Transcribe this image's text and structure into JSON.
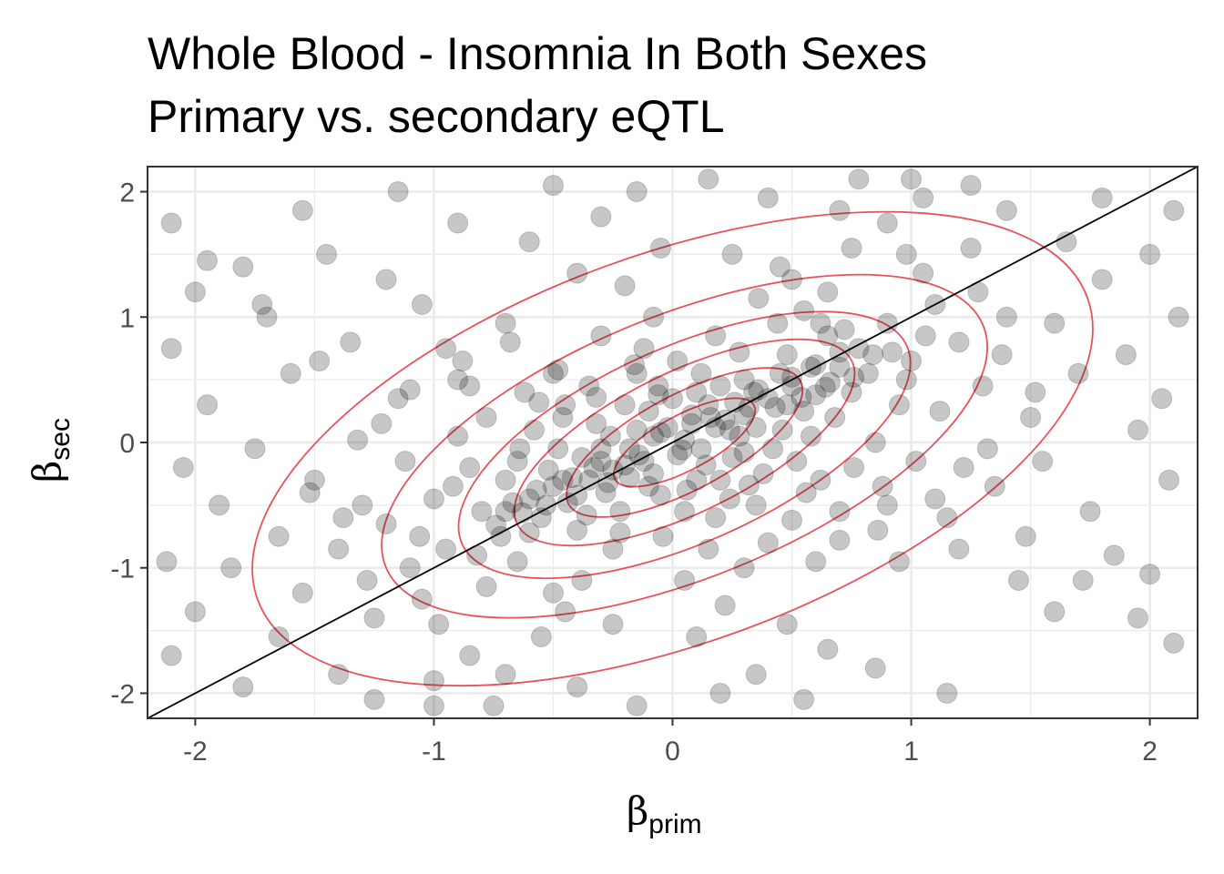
{
  "chart_data": {
    "type": "scatter",
    "title": "Whole Blood - Insomnia In Both Sexes",
    "subtitle": "Primary vs. secondary eQTL",
    "xlabel": {
      "symbol": "β",
      "subscript": "prim"
    },
    "ylabel": {
      "symbol": "β",
      "subscript": "sec"
    },
    "xlim": [
      -2.2,
      2.2
    ],
    "ylim": [
      -2.2,
      2.2
    ],
    "x_ticks": [
      -2,
      -1,
      0,
      1,
      2
    ],
    "y_ticks": [
      -2,
      -1,
      0,
      1,
      2
    ],
    "x_tick_labels": [
      "-2",
      "-1",
      "0",
      "1",
      "2"
    ],
    "y_tick_labels": [
      "-2",
      "-1",
      "0",
      "1",
      "2"
    ],
    "grid": true,
    "reference_line": {
      "slope": 1,
      "intercept": 0,
      "color": "#000000"
    },
    "point_color": "#000000",
    "point_opacity": 0.22,
    "contour_color": "#e8333d",
    "contour_levels": [
      {
        "cx": 0.05,
        "cy": 0.0,
        "rx": 0.33,
        "ry": 0.22,
        "angle": 28
      },
      {
        "cx": 0.05,
        "cy": 0.0,
        "rx": 0.55,
        "ry": 0.38,
        "angle": 28
      },
      {
        "cx": 0.05,
        "cy": 0.0,
        "rx": 0.78,
        "ry": 0.56,
        "angle": 26
      },
      {
        "cx": 0.05,
        "cy": -0.02,
        "rx": 1.02,
        "ry": 0.78,
        "angle": 24
      },
      {
        "cx": 0.05,
        "cy": -0.03,
        "rx": 1.35,
        "ry": 1.05,
        "angle": 22
      },
      {
        "cx": 0.0,
        "cy": -0.05,
        "rx": 1.85,
        "ry": 1.55,
        "angle": 20
      }
    ],
    "points": [
      [
        -0.12,
        -0.15
      ],
      [
        0.05,
        0.02
      ],
      [
        0.18,
        0.12
      ],
      [
        -0.25,
        -0.22
      ],
      [
        0.32,
        0.28
      ],
      [
        -0.05,
        0.08
      ],
      [
        0.12,
        -0.05
      ],
      [
        0.22,
        0.18
      ],
      [
        -0.35,
        -0.3
      ],
      [
        0.4,
        0.35
      ],
      [
        -0.18,
        -0.05
      ],
      [
        0.08,
        0.15
      ],
      [
        0.28,
        0.05
      ],
      [
        -0.42,
        -0.28
      ],
      [
        0.5,
        0.45
      ],
      [
        -0.08,
        -0.25
      ],
      [
        0.15,
        0.3
      ],
      [
        0.35,
        0.12
      ],
      [
        -0.28,
        -0.4
      ],
      [
        0.02,
        -0.1
      ],
      [
        0.45,
        0.55
      ],
      [
        -0.5,
        -0.35
      ],
      [
        0.6,
        0.38
      ],
      [
        -0.15,
        0.1
      ],
      [
        0.25,
        -0.12
      ],
      [
        -0.38,
        -0.12
      ],
      [
        0.1,
        0.4
      ],
      [
        0.55,
        0.25
      ],
      [
        -0.6,
        -0.45
      ],
      [
        0.7,
        0.6
      ],
      [
        -0.22,
        -0.55
      ],
      [
        0.3,
        0.5
      ],
      [
        -0.1,
        0.25
      ],
      [
        0.42,
        -0.05
      ],
      [
        -0.48,
        -0.05
      ],
      [
        0.65,
        0.85
      ],
      [
        -0.7,
        -0.3
      ],
      [
        0.2,
        -0.3
      ],
      [
        -0.32,
        0.15
      ],
      [
        0.48,
        0.7
      ],
      [
        -0.55,
        -0.6
      ],
      [
        0.75,
        0.4
      ],
      [
        0.0,
        0.35
      ],
      [
        -0.65,
        -0.15
      ],
      [
        0.38,
        -0.25
      ],
      [
        -0.4,
        -0.7
      ],
      [
        0.58,
        0.05
      ],
      [
        -0.2,
        0.3
      ],
      [
        0.82,
        0.55
      ],
      [
        -0.8,
        -0.55
      ],
      [
        0.12,
        0.55
      ],
      [
        -0.05,
        -0.42
      ],
      [
        0.52,
        -0.15
      ],
      [
        -0.45,
        0.3
      ],
      [
        0.68,
        0.2
      ],
      [
        -0.72,
        -0.75
      ],
      [
        0.28,
        0.72
      ],
      [
        -0.3,
        -0.15
      ],
      [
        0.9,
        0.95
      ],
      [
        -0.85,
        -0.2
      ],
      [
        0.05,
        -0.55
      ],
      [
        0.44,
        0.95
      ],
      [
        -0.58,
        0.1
      ],
      [
        0.62,
        -0.3
      ],
      [
        -0.95,
        -0.85
      ],
      [
        0.95,
        0.3
      ],
      [
        -0.15,
        0.55
      ],
      [
        0.18,
        -0.6
      ],
      [
        -0.65,
        -0.95
      ],
      [
        0.78,
        0.75
      ],
      [
        -0.35,
        0.45
      ],
      [
        0.35,
        -0.5
      ],
      [
        -1.0,
        -0.45
      ],
      [
        1.0,
        0.65
      ],
      [
        -0.25,
        -0.85
      ],
      [
        0.55,
        1.05
      ],
      [
        -0.9,
        0.05
      ],
      [
        0.85,
        0.0
      ],
      [
        -1.1,
        -1.0
      ],
      [
        1.1,
        1.1
      ],
      [
        -0.5,
        0.55
      ],
      [
        0.4,
        -0.8
      ],
      [
        -0.78,
        -1.15
      ],
      [
        0.98,
        0.5
      ],
      [
        -0.12,
        0.75
      ],
      [
        0.15,
        -0.85
      ],
      [
        -1.2,
        -0.65
      ],
      [
        1.2,
        0.8
      ],
      [
        -0.62,
        0.4
      ],
      [
        0.7,
        -0.55
      ],
      [
        -1.05,
        -1.25
      ],
      [
        0.65,
        1.2
      ],
      [
        -0.3,
        0.85
      ],
      [
        0.3,
        -1.0
      ],
      [
        -1.3,
        -0.5
      ],
      [
        1.3,
        0.45
      ],
      [
        -0.85,
        0.45
      ],
      [
        0.88,
        -0.35
      ],
      [
        -1.25,
        -1.4
      ],
      [
        1.05,
        1.35
      ],
      [
        -0.08,
        1.0
      ],
      [
        0.05,
        -1.1
      ],
      [
        -1.4,
        -0.85
      ],
      [
        1.4,
        1.0
      ],
      [
        -0.95,
        0.75
      ],
      [
        1.02,
        -0.15
      ],
      [
        -0.45,
        -1.35
      ],
      [
        0.45,
        1.4
      ],
      [
        -1.5,
        -0.3
      ],
      [
        1.5,
        0.2
      ],
      [
        -0.7,
        0.95
      ],
      [
        0.6,
        -0.95
      ],
      [
        -1.15,
        0.35
      ],
      [
        1.15,
        -0.6
      ],
      [
        -1.55,
        -1.2
      ],
      [
        1.25,
        1.55
      ],
      [
        -0.2,
        1.25
      ],
      [
        0.22,
        -1.3
      ],
      [
        -1.65,
        -0.75
      ],
      [
        1.6,
        0.95
      ],
      [
        -1.05,
        1.1
      ],
      [
        0.95,
        -0.95
      ],
      [
        -0.55,
        -1.55
      ],
      [
        0.75,
        1.55
      ],
      [
        -1.75,
        -0.05
      ],
      [
        1.7,
        0.55
      ],
      [
        -0.4,
        1.35
      ],
      [
        0.48,
        -1.45
      ],
      [
        -1.35,
        0.8
      ],
      [
        1.35,
        -0.35
      ],
      [
        -1.85,
        -1.0
      ],
      [
        1.8,
        1.3
      ],
      [
        -0.05,
        1.55
      ],
      [
        0.1,
        -1.55
      ],
      [
        -1.9,
        -0.5
      ],
      [
        1.9,
        0.7
      ],
      [
        -1.2,
        1.3
      ],
      [
        1.2,
        -0.85
      ],
      [
        -0.85,
        -1.7
      ],
      [
        0.9,
        1.75
      ],
      [
        -1.6,
        0.55
      ],
      [
        1.55,
        -0.15
      ],
      [
        -2.0,
        -1.35
      ],
      [
        2.0,
        1.5
      ],
      [
        -0.6,
        1.6
      ],
      [
        0.65,
        -1.65
      ],
      [
        -1.7,
        1.0
      ],
      [
        1.75,
        -0.55
      ],
      [
        -2.05,
        -0.2
      ],
      [
        2.05,
        0.35
      ],
      [
        -0.3,
        1.8
      ],
      [
        0.35,
        -1.85
      ],
      [
        -1.45,
        1.5
      ],
      [
        1.45,
        -1.1
      ],
      [
        -1.0,
        -1.9
      ],
      [
        1.05,
        1.95
      ],
      [
        -1.95,
        0.3
      ],
      [
        1.95,
        0.1
      ],
      [
        -2.1,
        -1.7
      ],
      [
        2.1,
        1.85
      ],
      [
        -0.9,
        1.75
      ],
      [
        0.85,
        -1.8
      ],
      [
        -1.8,
        1.4
      ],
      [
        1.85,
        -0.9
      ],
      [
        -0.15,
        2.0
      ],
      [
        0.2,
        -2.0
      ],
      [
        -2.1,
        0.75
      ],
      [
        2.08,
        -0.3
      ],
      [
        -1.55,
        1.85
      ],
      [
        1.6,
        -1.35
      ],
      [
        -1.25,
        -2.05
      ],
      [
        1.25,
        2.05
      ],
      [
        -2.0,
        1.2
      ],
      [
        2.0,
        -1.05
      ],
      [
        -0.5,
        2.05
      ],
      [
        0.55,
        -2.05
      ],
      [
        -1.15,
        2.0
      ],
      [
        1.15,
        -2.0
      ],
      [
        -2.1,
        1.75
      ],
      [
        2.1,
        -1.6
      ],
      [
        -1.8,
        -1.95
      ],
      [
        1.8,
        1.95
      ],
      [
        -0.75,
        -2.1
      ],
      [
        0.78,
        2.1
      ],
      [
        -0.02,
        0.12
      ],
      [
        0.08,
        0.22
      ],
      [
        -0.18,
        -0.28
      ],
      [
        0.26,
        0.32
      ],
      [
        -0.3,
        -0.05
      ],
      [
        0.14,
        -0.18
      ],
      [
        0.36,
        0.42
      ],
      [
        -0.44,
        -0.48
      ],
      [
        0.48,
        0.3
      ],
      [
        -0.1,
        -0.35
      ],
      [
        0.2,
        0.45
      ],
      [
        -0.26,
        0.05
      ],
      [
        0.58,
        0.6
      ],
      [
        -0.52,
        -0.22
      ],
      [
        0.3,
        -0.08
      ],
      [
        -0.36,
        -0.58
      ],
      [
        0.66,
        0.48
      ],
      [
        -0.06,
        0.45
      ],
      [
        0.1,
        -0.3
      ],
      [
        -0.6,
        -0.72
      ],
      [
        0.72,
        0.9
      ],
      [
        -0.46,
        0.2
      ],
      [
        0.46,
        0.1
      ],
      [
        -0.7,
        -0.55
      ],
      [
        0.84,
        0.7
      ],
      [
        -0.16,
        0.62
      ],
      [
        0.24,
        -0.45
      ],
      [
        -0.82,
        -0.9
      ],
      [
        0.92,
        0.72
      ],
      [
        -0.56,
        0.32
      ],
      [
        0.56,
        -0.4
      ],
      [
        -0.92,
        -0.35
      ],
      [
        0.18,
        0.85
      ],
      [
        -0.22,
        -0.72
      ],
      [
        1.06,
        0.85
      ],
      [
        -1.06,
        -0.75
      ],
      [
        0.62,
        0.95
      ],
      [
        -0.64,
        -0.05
      ],
      [
        0.76,
        -0.2
      ],
      [
        -0.78,
        0.2
      ],
      [
        0.02,
        0.65
      ],
      [
        -0.04,
        -0.75
      ],
      [
        1.12,
        0.25
      ],
      [
        -1.12,
        -0.15
      ],
      [
        0.36,
        1.15
      ],
      [
        -0.38,
        -1.1
      ],
      [
        0.86,
        -0.7
      ],
      [
        -0.88,
        0.65
      ],
      [
        1.28,
        1.2
      ],
      [
        -1.28,
        -1.1
      ],
      [
        0.5,
        1.3
      ],
      [
        -0.5,
        -1.2
      ],
      [
        1.22,
        -0.2
      ],
      [
        -1.22,
        0.15
      ],
      [
        0.98,
        1.5
      ],
      [
        -0.98,
        -1.45
      ],
      [
        1.38,
        0.7
      ],
      [
        -1.38,
        -0.6
      ],
      [
        0.25,
        1.5
      ],
      [
        -0.25,
        -1.45
      ],
      [
        1.48,
        -0.75
      ],
      [
        -1.48,
        0.65
      ],
      [
        0.7,
        1.85
      ],
      [
        -0.7,
        -1.85
      ],
      [
        1.65,
        1.6
      ],
      [
        -1.65,
        -1.55
      ],
      [
        0.4,
        1.95
      ],
      [
        -0.4,
        -1.95
      ],
      [
        1.72,
        -1.1
      ],
      [
        -1.72,
        1.1
      ],
      [
        1.0,
        2.1
      ],
      [
        -1.0,
        -2.1
      ],
      [
        1.95,
        -1.4
      ],
      [
        -1.95,
        1.45
      ],
      [
        0.15,
        2.1
      ],
      [
        -0.15,
        -2.1
      ],
      [
        2.12,
        1.0
      ],
      [
        -2.12,
        -0.95
      ],
      [
        1.4,
        1.85
      ],
      [
        -1.4,
        -1.85
      ],
      [
        -0.08,
        0.05
      ],
      [
        0.04,
        -0.06
      ],
      [
        -0.14,
        -0.1
      ],
      [
        0.16,
        0.2
      ],
      [
        -0.2,
        -0.18
      ],
      [
        0.24,
        0.1
      ],
      [
        -0.27,
        -0.32
      ],
      [
        0.3,
        0.22
      ],
      [
        -0.33,
        -0.2
      ],
      [
        0.34,
        0.4
      ],
      [
        -0.4,
        -0.42
      ],
      [
        0.43,
        0.28
      ],
      [
        -0.46,
        -0.3
      ],
      [
        0.5,
        0.52
      ],
      [
        -0.53,
        -0.5
      ],
      [
        0.54,
        0.36
      ],
      [
        -0.57,
        -0.38
      ],
      [
        0.6,
        0.62
      ],
      [
        -0.63,
        -0.56
      ],
      [
        0.64,
        0.44
      ],
      [
        -0.67,
        -0.48
      ],
      [
        0.7,
        0.72
      ],
      [
        -0.74,
        -0.66
      ],
      [
        0.76,
        0.52
      ],
      [
        0.06,
        -0.38
      ],
      [
        -0.06,
        0.38
      ],
      [
        0.32,
        -0.34
      ],
      [
        -0.32,
        0.36
      ],
      [
        0.5,
        -0.62
      ],
      [
        -0.48,
        0.58
      ],
      [
        0.7,
        -0.78
      ],
      [
        -0.68,
        0.8
      ],
      [
        0.9,
        -0.5
      ],
      [
        -0.9,
        0.5
      ],
      [
        1.1,
        -0.45
      ],
      [
        -1.1,
        0.42
      ],
      [
        1.32,
        -0.05
      ],
      [
        -1.32,
        0.02
      ],
      [
        1.52,
        0.4
      ],
      [
        -1.52,
        -0.4
      ]
    ]
  }
}
